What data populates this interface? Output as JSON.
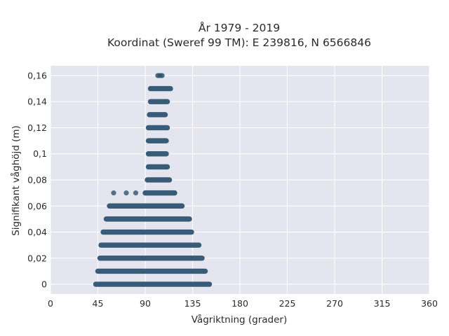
{
  "chart_data": {
    "type": "scatter",
    "title_line1": "År 1979 - 2019",
    "title_line2": "Koordinat (Sweref 99 TM): E 239816, N 6566846",
    "xlabel": "Vågriktning (grader)",
    "ylabel": "Signifikant våghöjd (m)",
    "xlim": [
      0,
      360
    ],
    "ylim": [
      -0.0075,
      0.1675
    ],
    "x_ticks": [
      0,
      45,
      90,
      135,
      180,
      225,
      270,
      315,
      360
    ],
    "x_tick_labels": [
      "0",
      "45",
      "90",
      "135",
      "180",
      "225",
      "270",
      "315",
      "360"
    ],
    "y_ticks": [
      0,
      0.02,
      0.04,
      0.06,
      0.08,
      0.1,
      0.12,
      0.14,
      0.16
    ],
    "y_tick_labels": [
      "0",
      "0,02",
      "0,04",
      "0,06",
      "0,08",
      "0,1",
      "0,12",
      "0,14",
      "0,16"
    ],
    "grid": true,
    "background_color": "#e5e5ef",
    "marker_color": "#2e5470",
    "levels": [
      {
        "y": 0.0,
        "x_min": 43,
        "x_max": 151
      },
      {
        "y": 0.01,
        "x_min": 45,
        "x_max": 147
      },
      {
        "y": 0.02,
        "x_min": 47,
        "x_max": 144
      },
      {
        "y": 0.03,
        "x_min": 48,
        "x_max": 141
      },
      {
        "y": 0.04,
        "x_min": 50,
        "x_max": 134
      },
      {
        "y": 0.05,
        "x_min": 53,
        "x_max": 132
      },
      {
        "y": 0.06,
        "x_min": 56,
        "x_max": 125
      },
      {
        "y": 0.07,
        "x_min": 90,
        "x_max": 118
      },
      {
        "y": 0.08,
        "x_min": 92,
        "x_max": 113
      },
      {
        "y": 0.09,
        "x_min": 93,
        "x_max": 111
      },
      {
        "y": 0.1,
        "x_min": 93,
        "x_max": 110
      },
      {
        "y": 0.11,
        "x_min": 93,
        "x_max": 110
      },
      {
        "y": 0.12,
        "x_min": 93,
        "x_max": 111
      },
      {
        "y": 0.13,
        "x_min": 94,
        "x_max": 109
      },
      {
        "y": 0.14,
        "x_min": 95,
        "x_max": 111
      },
      {
        "y": 0.15,
        "x_min": 95,
        "x_max": 114
      },
      {
        "y": 0.16,
        "x_min": 102,
        "x_max": 106
      }
    ],
    "isolated_points": [
      {
        "x": 60,
        "y": 0.07
      },
      {
        "x": 72,
        "y": 0.07
      },
      {
        "x": 81,
        "y": 0.07
      }
    ]
  }
}
